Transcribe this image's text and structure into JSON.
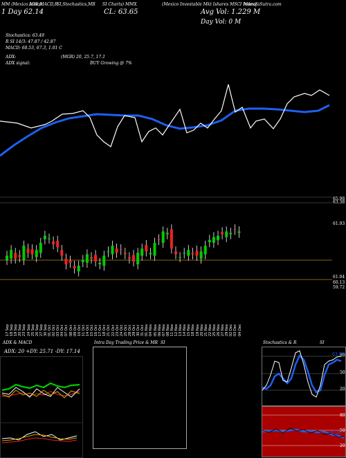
{
  "header": {
    "l1a": "MM (Mexico Invest",
    "l1b": "ADX,MACD,R",
    "l1c": "SI,Stochastics,MR",
    "l1d": "SI Charts) MMX",
    "l1e": "(Mexico  Investable  Mkt Ishares MSCI Index) ",
    "l1f": "MunafaSutra.com",
    "l2a": "1 Day 62.14",
    "l2b": "CL: 63.65",
    "l2c": "Avg Vol: 1.229 M",
    "l3": "Day Vol: 0   M",
    "stoch": "Stochastics: 63.49",
    "rsi": "R SI 14/3: 47.87 / 42.87",
    "macd": "MACD: 68.53, 67.3, 1.01 C",
    "adx": "ADX:",
    "adx_vals": "(MGR) 20, 25.7, 17.1",
    "adx_signal": "ADX   signal:",
    "buy": "BUY Growing @ 7%"
  },
  "price_axis": [
    "65.98",
    "63.38",
    "61.93",
    "61.04",
    "60.13",
    "59.72"
  ],
  "dates": [
    "17 Sep",
    "18 Sep",
    "19 Sep",
    "20 Sep",
    "23 Sep",
    "24 Sep",
    "25 Sep",
    "26 Sep",
    "27 Sep",
    "30 Sep",
    "01 Oct",
    "02 Oct",
    "03 Oct",
    "04 Oct",
    "07 Oct",
    "08 Oct",
    "09 Oct",
    "10 Oct",
    "11 Oct",
    "14 Oct",
    "15 Oct",
    "16 Oct",
    "17 Oct",
    "18 Oct",
    "21 Oct",
    "22 Oct",
    "23 Oct",
    "24 Oct",
    "25 Oct",
    "28 Oct",
    "29 Oct",
    "30 Oct",
    "31 Oct",
    "01 Nov",
    "04 Nov",
    "05 Nov",
    "06 Nov",
    "07 Nov",
    "08 Nov",
    "11 Nov",
    "12 Nov",
    "13 Nov",
    "14 Nov",
    "15 Nov",
    "18 Nov",
    "19 Nov",
    "20 Nov",
    "21 Nov",
    "22 Nov",
    "25 Nov",
    "26 Nov",
    "27 Nov",
    "29 Nov",
    "02 Dec",
    "03 Dec",
    "04 Dec"
  ],
  "bottom": {
    "adx_title": "ADX  & MACD",
    "adx_vals": "ADX: 20  +DY: 25.71  -DY: 17.14",
    "intra_title": "Intra  Day Trading Price  & MR",
    "intra_si": "SI",
    "stoch_title": "Stochastics & R",
    "stoch_si": "SI",
    "stoch_ticks": [
      "80",
      "50",
      "20"
    ],
    "rsi_ticks": [
      "80",
      "50",
      "20"
    ],
    "stoch_label": "63.49",
    "rsi_label": "47.87"
  },
  "colors": {
    "up": "#00cc00",
    "down": "#ee2222",
    "ema": "#1e5ff0",
    "grid": "#b8860b",
    "rsi_bg": "#aa0000",
    "stoch_bg": "#000000"
  },
  "chart_data": {
    "type": "candlestick",
    "title": "",
    "series": [
      {
        "name": "",
        "values": [
          61.9,
          62.3,
          61.7,
          61.8,
          62.6,
          62.1,
          62.0,
          62.3,
          62.8,
          63.3,
          63.1,
          62.7,
          62.5,
          61.9,
          61.3,
          61.4,
          61.0,
          61.2,
          61.6,
          62.0,
          61.7,
          61.5,
          61.4,
          61.9,
          62.2,
          62.6,
          62.1,
          62.3,
          62.0,
          61.7,
          61.5,
          62.1,
          62.4,
          62.2,
          62.1,
          62.8,
          63.0,
          63.6,
          63.5,
          62.4,
          62.0,
          61.8,
          62.1,
          62.3,
          62.0,
          61.9,
          62.2,
          62.6,
          63.0,
          63.2,
          63.3,
          63.4,
          63.6,
          63.5,
          63.7,
          63.6
        ]
      }
    ],
    "ylim": [
      59.7,
      66.0
    ]
  }
}
